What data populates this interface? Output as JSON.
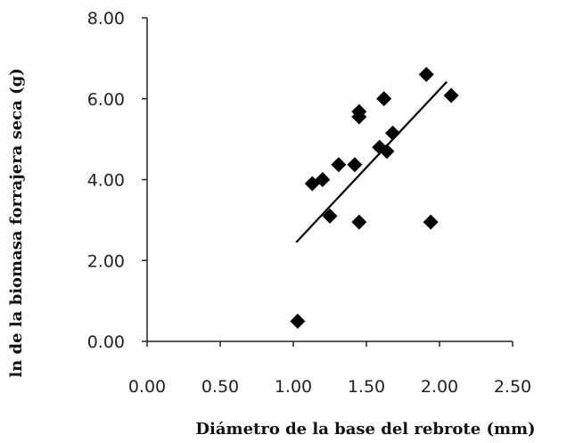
{
  "chart_data": {
    "type": "scatter",
    "xlabel": "Diámetro de la base del rebrote (mm)",
    "ylabel": "ln de la biomasa forrajera seca (g)",
    "xlim": [
      0,
      2.5
    ],
    "ylim": [
      0,
      8
    ],
    "x_ticks": [
      "0.00",
      "0.50",
      "1.00",
      "1.50",
      "2.00",
      "2.50"
    ],
    "y_ticks": [
      "0.00",
      "2.00",
      "4.00",
      "6.00",
      "8.00"
    ],
    "grid": false,
    "legend": "none",
    "marker": "diamond",
    "marker_color": "#000000",
    "series": [
      {
        "points": [
          {
            "x": 1.03,
            "y": 0.5
          },
          {
            "x": 1.13,
            "y": 3.9
          },
          {
            "x": 1.2,
            "y": 4.0
          },
          {
            "x": 1.25,
            "y": 3.1
          },
          {
            "x": 1.31,
            "y": 4.37
          },
          {
            "x": 1.42,
            "y": 4.37
          },
          {
            "x": 1.45,
            "y": 5.55
          },
          {
            "x": 1.45,
            "y": 5.68
          },
          {
            "x": 1.45,
            "y": 2.95
          },
          {
            "x": 1.59,
            "y": 4.8
          },
          {
            "x": 1.62,
            "y": 6.0
          },
          {
            "x": 1.64,
            "y": 4.7
          },
          {
            "x": 1.68,
            "y": 5.15
          },
          {
            "x": 1.91,
            "y": 6.6
          },
          {
            "x": 1.94,
            "y": 2.95
          },
          {
            "x": 2.08,
            "y": 6.08
          }
        ]
      }
    ],
    "trendline": {
      "x": [
        1.02,
        2.05
      ],
      "y": [
        2.45,
        6.42
      ]
    }
  }
}
